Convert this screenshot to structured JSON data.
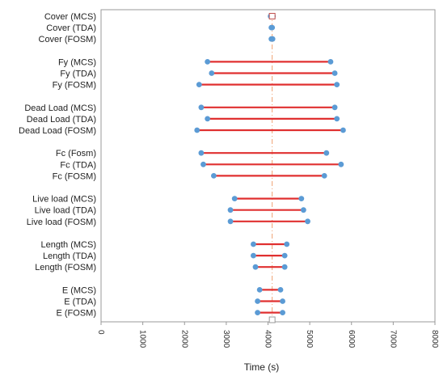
{
  "chart_data": {
    "type": "dumbbell",
    "xlabel": "Time (s)",
    "xlim": [
      0,
      8000
    ],
    "xticks": [
      0,
      1000,
      2000,
      3000,
      4000,
      5000,
      6000,
      7000,
      8000
    ],
    "reference_x": 4100,
    "colors": {
      "segment": "#e03030",
      "endpoint": "#5b9bd5",
      "reference": "#f0a070",
      "frame": "#999999",
      "marker_outline": "#c0504d"
    },
    "categories": [
      {
        "label": "Cover (MCS)",
        "low": 4060,
        "high": 4120,
        "row": 0
      },
      {
        "label": "Cover (TDA)",
        "low": 4080,
        "high": 4100,
        "row": 1
      },
      {
        "label": "Cover (FOSM)",
        "low": 4080,
        "high": 4110,
        "row": 2
      },
      {
        "label": "Fy (MCS)",
        "low": 2550,
        "high": 5500,
        "row": 4
      },
      {
        "label": "Fy (TDA)",
        "low": 2650,
        "high": 5600,
        "row": 5
      },
      {
        "label": "Fy (FOSM)",
        "low": 2350,
        "high": 5650,
        "row": 6
      },
      {
        "label": "Dead Load (MCS)",
        "low": 2400,
        "high": 5600,
        "row": 8
      },
      {
        "label": "Dead Load (TDA)",
        "low": 2550,
        "high": 5650,
        "row": 9
      },
      {
        "label": "Dead Load (FOSM)",
        "low": 2300,
        "high": 5800,
        "row": 10
      },
      {
        "label": "Fc (Fosm)",
        "low": 2400,
        "high": 5400,
        "row": 12
      },
      {
        "label": "Fc (TDA)",
        "low": 2450,
        "high": 5750,
        "row": 13
      },
      {
        "label": "Fc (FOSM)",
        "low": 2700,
        "high": 5350,
        "row": 14
      },
      {
        "label": "Live load (MCS)",
        "low": 3200,
        "high": 4800,
        "row": 16
      },
      {
        "label": "Live load (TDA)",
        "low": 3100,
        "high": 4850,
        "row": 17
      },
      {
        "label": "Live load (FOSM)",
        "low": 3100,
        "high": 4950,
        "row": 18
      },
      {
        "label": "Length (MCS)",
        "low": 3650,
        "high": 4450,
        "row": 20
      },
      {
        "label": "Length (TDA)",
        "low": 3650,
        "high": 4400,
        "row": 21
      },
      {
        "label": "Length (FOSM)",
        "low": 3700,
        "high": 4400,
        "row": 22
      },
      {
        "label": "E (MCS)",
        "low": 3800,
        "high": 4300,
        "row": 24
      },
      {
        "label": "E (TDA)",
        "low": 3750,
        "high": 4350,
        "row": 25
      },
      {
        "label": "E (FOSM)",
        "low": 3750,
        "high": 4350,
        "row": 26
      }
    ]
  }
}
